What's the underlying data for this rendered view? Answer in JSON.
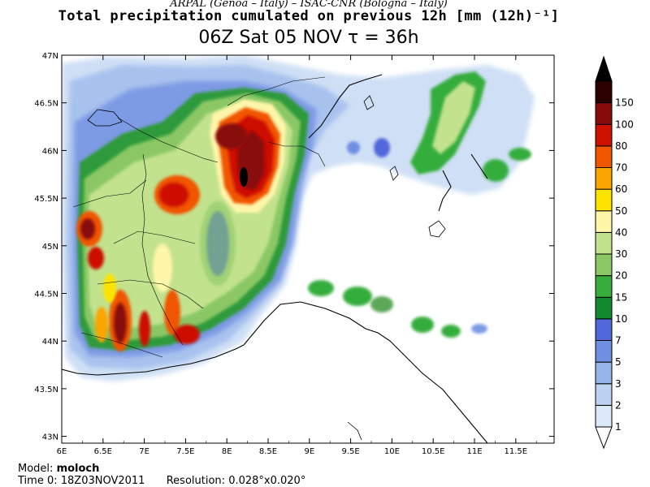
{
  "header": {
    "credit": "ARPAL (Genoa – Italy)  –  ISAC-CNR (Bologna – Italy)",
    "title": "Total precipitation cumulated on previous 12h [mm (12h)⁻¹]",
    "time_line": "06Z Sat 05 NOV  τ = 36h"
  },
  "footer": {
    "model_label": "Model:",
    "model_value": "moloch",
    "time0_label": "Time 0:",
    "time0_value": "18Z03NOV2011",
    "resolution_label": "Resolution:",
    "resolution_value": "0.028°x0.020°"
  },
  "axes": {
    "lon_ticks": [
      "6E",
      "6.5E",
      "7E",
      "7.5E",
      "8E",
      "8.5E",
      "9E",
      "9.5E",
      "10E",
      "10.5E",
      "11E",
      "11.5E"
    ],
    "lat_ticks": [
      "47N",
      "46.5N",
      "46N",
      "45.5N",
      "45N",
      "44.5N",
      "44N",
      "43.5N",
      "43N"
    ]
  },
  "colorbar": {
    "levels": [
      "1",
      "2",
      "3",
      "5",
      "7",
      "10",
      "15",
      "20",
      "30",
      "40",
      "50",
      "60",
      "70",
      "80",
      "100",
      "150"
    ],
    "colors": [
      "#ffffff",
      "#dce9f8",
      "#bdd2f1",
      "#97b4ea",
      "#6f8fe2",
      "#5168da",
      "#118a2f",
      "#36ad3d",
      "#8bc865",
      "#c2e28e",
      "#fff6a9",
      "#fde300",
      "#fba502",
      "#f05500",
      "#cd1000",
      "#880b0b",
      "#2d0000",
      "#000000"
    ]
  },
  "colors": {
    "land_outline": "#000000",
    "sea": "#ffffff"
  }
}
